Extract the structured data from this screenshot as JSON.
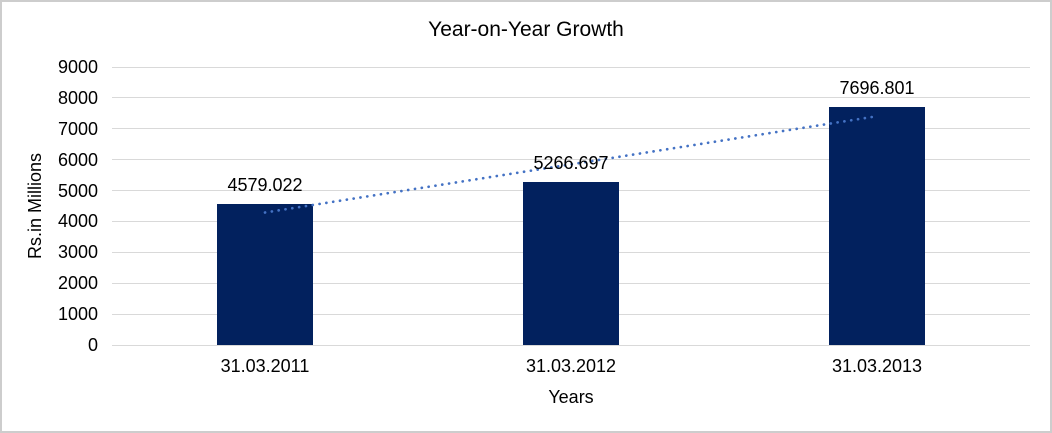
{
  "chart_data": {
    "type": "bar",
    "title": "Year-on-Year Growth",
    "categories": [
      "31.03.2011",
      "31.03.2012",
      "31.03.2013"
    ],
    "values": [
      4579.022,
      5266.697,
      7696.801
    ],
    "data_labels": [
      "4579.022",
      "5266.697",
      "7696.801"
    ],
    "xlabel": "Years",
    "ylabel": "Rs.in Millions",
    "ylim": [
      0,
      9000
    ],
    "ytick_step": 1000,
    "grid": "horizontal",
    "legend": "none",
    "trendline": {
      "type": "linear",
      "style": "dotted",
      "span": "first-bar-center to last-bar-center"
    }
  },
  "colors": {
    "bar": "#02215e",
    "trendline": "#4472c4",
    "gridline": "#d9d9d9",
    "text": "#000000",
    "frame_border": "#cdcdcd",
    "background": "#ffffff"
  }
}
